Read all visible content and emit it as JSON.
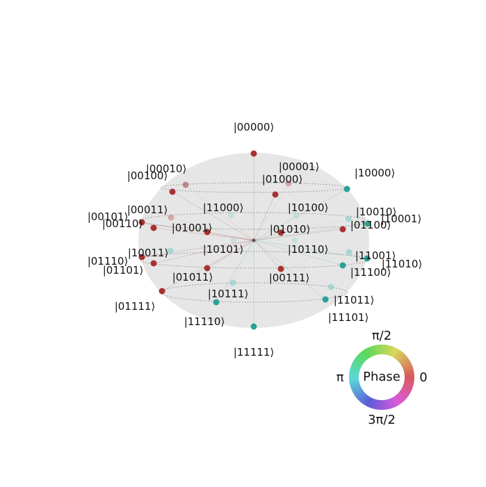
{
  "states": [
    {
      "ket": "|00000⟩",
      "color": "#a83232",
      "opacity": 1.0
    },
    {
      "ket": "|00001⟩",
      "color": "#c98f8f",
      "opacity": 0.7
    },
    {
      "ket": "|00010⟩",
      "color": "#b06060",
      "opacity": 0.7
    },
    {
      "ket": "|00100⟩",
      "color": "#a83232",
      "opacity": 1.0
    },
    {
      "ket": "|01000⟩",
      "color": "#a83232",
      "opacity": 1.0
    },
    {
      "ket": "|10000⟩",
      "color": "#2aa198",
      "opacity": 1.0
    },
    {
      "ket": "|00011⟩",
      "color": "#c98f8f",
      "opacity": 0.7
    },
    {
      "ket": "|00101⟩",
      "color": "#a83232",
      "opacity": 1.0
    },
    {
      "ket": "|00110⟩",
      "color": "#a83232",
      "opacity": 1.0
    },
    {
      "ket": "|11000⟩",
      "color": "#8fd0cb",
      "opacity": 0.35
    },
    {
      "ket": "|10100⟩",
      "color": "#8fd0cb",
      "opacity": 0.35
    },
    {
      "ket": "|10010⟩",
      "color": "#8fd0cb",
      "opacity": 0.7
    },
    {
      "ket": "|10001⟩",
      "color": "#2aa198",
      "opacity": 1.0
    },
    {
      "ket": "|01100⟩",
      "color": "#a83232",
      "opacity": 1.0
    },
    {
      "ket": "|01001⟩",
      "color": "#a83232",
      "opacity": 1.0
    },
    {
      "ket": "|01010⟩",
      "color": "#a83232",
      "opacity": 1.0
    },
    {
      "ket": "|10011⟩",
      "color": "#8fd0cb",
      "opacity": 0.7
    },
    {
      "ket": "|10101⟩",
      "color": "#8fd0cb",
      "opacity": 0.35
    },
    {
      "ket": "|10110⟩",
      "color": "#8fd0cb",
      "opacity": 0.35
    },
    {
      "ket": "|11001⟩",
      "color": "#8fd0cb",
      "opacity": 0.7
    },
    {
      "ket": "|11010⟩",
      "color": "#2aa198",
      "opacity": 1.0
    },
    {
      "ket": "|01110⟩",
      "color": "#a83232",
      "opacity": 1.0
    },
    {
      "ket": "|01101⟩",
      "color": "#a83232",
      "opacity": 1.0
    },
    {
      "ket": "|01011⟩",
      "color": "#a83232",
      "opacity": 1.0
    },
    {
      "ket": "|00111⟩",
      "color": "#a83232",
      "opacity": 1.0
    },
    {
      "ket": "|11100⟩",
      "color": "#2aa198",
      "opacity": 1.0
    },
    {
      "ket": "|10111⟩",
      "color": "#8fd0cb",
      "opacity": 0.7
    },
    {
      "ket": "|11011⟩",
      "color": "#8fd0cb",
      "opacity": 0.7
    },
    {
      "ket": "|01111⟩",
      "color": "#a83232",
      "opacity": 1.0
    },
    {
      "ket": "|11110⟩",
      "color": "#2aa198",
      "opacity": 1.0
    },
    {
      "ket": "|11101⟩",
      "color": "#2aa198",
      "opacity": 1.0
    },
    {
      "ket": "|11111⟩",
      "color": "#2aa198",
      "opacity": 1.0
    }
  ],
  "phase_wheel": {
    "title": "Phase",
    "labels": {
      "right": "0",
      "top": "π/2",
      "left": "π",
      "bottom": "3π/2"
    }
  },
  "colors": {
    "sphere": "#e6e6e6",
    "ring": "#9a9a9a",
    "phase_red": "#a83232",
    "phase_teal": "#2aa198"
  }
}
